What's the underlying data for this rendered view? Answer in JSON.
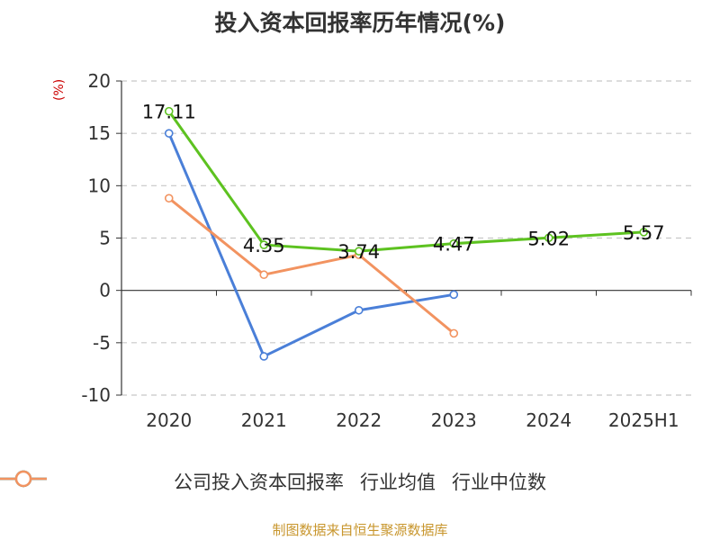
{
  "page": {
    "title": "投入资本回报率历年情况(%)",
    "source": "制图数据来自恒生聚源数据库"
  },
  "chart_data": {
    "type": "line",
    "title": "投入资本回报率历年情况(%)",
    "ylabel": "(%)",
    "xlabel": "",
    "categories": [
      "2020",
      "2021",
      "2022",
      "2023",
      "2024",
      "2025H1"
    ],
    "ylim": [
      -10,
      20
    ],
    "yticks": [
      -10,
      -5,
      0,
      5,
      10,
      15,
      20
    ],
    "grid": true,
    "legend_position": "bottom",
    "series": [
      {
        "name": "公司投入资本回报率",
        "color": "#5dc220",
        "values": [
          17.11,
          4.35,
          3.74,
          4.47,
          5.02,
          5.57
        ],
        "labels": true
      },
      {
        "name": "行业均值",
        "color": "#4a7fd8",
        "values": [
          15.0,
          -6.3,
          -1.9,
          -0.4,
          null,
          null
        ],
        "labels": false
      },
      {
        "name": "行业中位数",
        "color": "#f29360",
        "values": [
          8.8,
          1.5,
          3.4,
          -4.1,
          null,
          null
        ],
        "labels": false
      }
    ]
  }
}
